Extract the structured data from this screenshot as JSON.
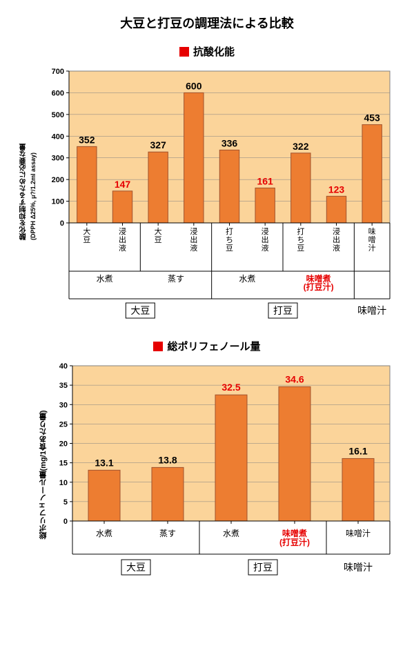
{
  "main_title": "大豆と打豆の調理法による比較",
  "red_square_color": "#e60000",
  "chart1": {
    "subtitle": "抗酸化能",
    "type": "bar",
    "background_color": "#fbd49a",
    "plot_border_color": "#808080",
    "grid_color": "#808080",
    "bar_fill": "#ed7d31",
    "bar_stroke": "#a0522d",
    "y_label": "酸化を抑制するために必要な量",
    "y_label_sub": "(DPPH Δ25%, μ?/1.2ml assay)",
    "y_label_fontsize": 10,
    "ylim": [
      0,
      700
    ],
    "ytick_step": 100,
    "yticks": [
      0,
      100,
      200,
      300,
      400,
      500,
      600,
      700
    ],
    "label_fontsize": 11,
    "value_fontsize": 14,
    "highlight_color": "#e60000",
    "normal_value_color": "#000000",
    "bars": [
      {
        "value": 352,
        "xlabel": "大豆",
        "highlight": false
      },
      {
        "value": 147,
        "xlabel": "浸出液",
        "highlight": true
      },
      {
        "value": 327,
        "xlabel": "大豆",
        "highlight": false
      },
      {
        "value": 600,
        "xlabel": "浸出液",
        "highlight": false
      },
      {
        "value": 336,
        "xlabel": "打ち豆",
        "highlight": false
      },
      {
        "value": 161,
        "xlabel": "浸出液",
        "highlight": true
      },
      {
        "value": 322,
        "xlabel": "打ち豆",
        "highlight": false
      },
      {
        "value": 123,
        "xlabel": "浸出液",
        "highlight": true
      },
      {
        "value": 453,
        "xlabel": "味噌汁",
        "highlight": false
      }
    ],
    "group_level1": [
      {
        "label": "水煮",
        "start": 0,
        "end": 2,
        "highlight": false
      },
      {
        "label": "蒸す",
        "start": 2,
        "end": 4,
        "highlight": false
      },
      {
        "label": "水煮",
        "start": 4,
        "end": 6,
        "highlight": false
      },
      {
        "label": "味噌煮\n(打豆汁)",
        "start": 6,
        "end": 8,
        "highlight": true
      }
    ],
    "group_level2": [
      {
        "label": "大豆",
        "start": 0,
        "end": 4,
        "boxed": true
      },
      {
        "label": "打豆",
        "start": 4,
        "end": 8,
        "boxed": true
      },
      {
        "label": "味噌汁",
        "start": 8,
        "end": 9,
        "boxed": false
      }
    ]
  },
  "chart2": {
    "subtitle": "総ポリフェノール量",
    "type": "bar",
    "background_color": "#fbd49a",
    "plot_border_color": "#808080",
    "grid_color": "#808080",
    "bar_fill": "#ed7d31",
    "bar_stroke": "#a0522d",
    "y_label": "総ポリフェノール量(mg/1食あたり量)",
    "y_label_fontsize": 11,
    "ylim": [
      0,
      40
    ],
    "ytick_step": 5,
    "yticks": [
      0,
      5,
      10,
      15,
      20,
      25,
      30,
      35,
      40
    ],
    "label_fontsize": 11,
    "value_fontsize": 14,
    "highlight_color": "#e60000",
    "normal_value_color": "#000000",
    "bars": [
      {
        "value": 13.1,
        "label": "13.1",
        "xlabel": "水煮",
        "highlight": false
      },
      {
        "value": 13.8,
        "label": "13.8",
        "xlabel": "蒸す",
        "highlight": false
      },
      {
        "value": 32.5,
        "label": "32.5",
        "xlabel": "水煮",
        "highlight": true
      },
      {
        "value": 34.6,
        "label": "34.6",
        "xlabel": "味噌煮\n(打豆汁)",
        "highlight": true,
        "xlabel_highlight": true
      },
      {
        "value": 16.1,
        "label": "16.1",
        "xlabel": "味噌汁",
        "highlight": false
      }
    ],
    "group_level2": [
      {
        "label": "大豆",
        "start": 0,
        "end": 2,
        "boxed": true
      },
      {
        "label": "打豆",
        "start": 2,
        "end": 4,
        "boxed": true
      },
      {
        "label": "味噌汁",
        "start": 4,
        "end": 5,
        "boxed": false
      }
    ]
  }
}
